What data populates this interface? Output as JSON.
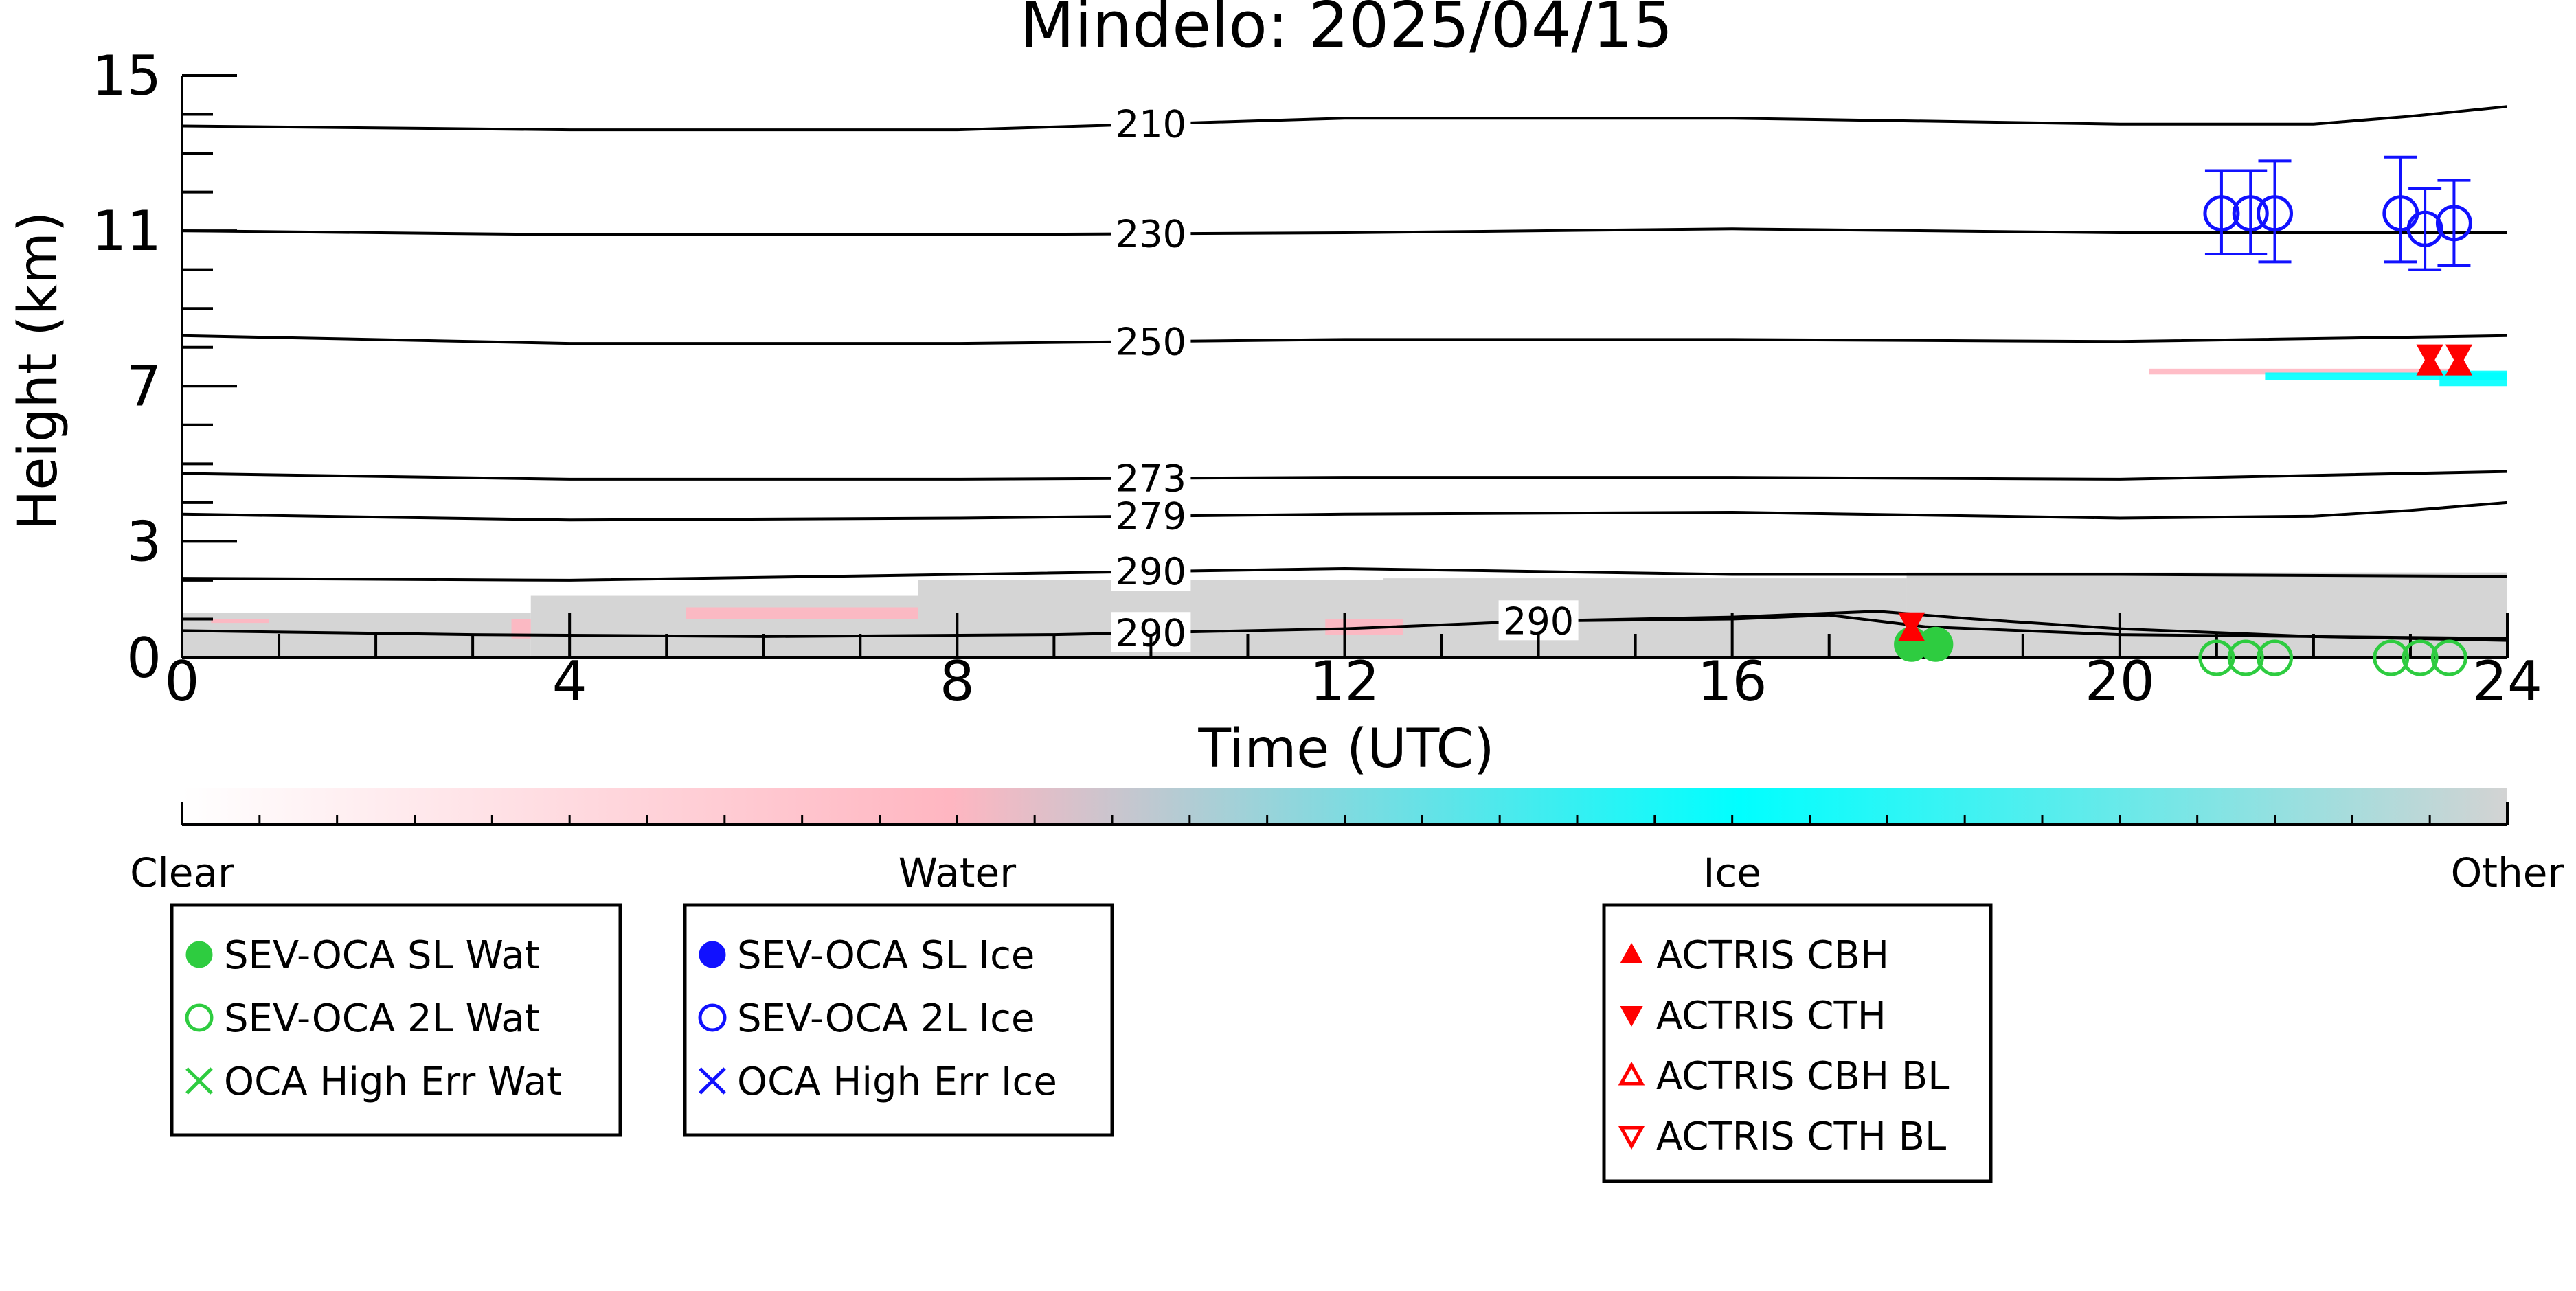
{
  "chart_data": {
    "type": "scatter",
    "title": "Mindelo: 2025/04/15",
    "xlabel": "Time (UTC)",
    "ylabel": "Height (km)",
    "xlim": [
      0,
      24
    ],
    "ylim": [
      0,
      15
    ],
    "x_ticks": [
      0,
      4,
      8,
      12,
      16,
      20,
      24
    ],
    "y_ticks": [
      0,
      3,
      7,
      11,
      15
    ],
    "temperature_contours": [
      {
        "label": "210",
        "label_x": 10.0,
        "x": [
          0,
          4,
          8,
          12,
          16,
          20,
          22,
          23,
          24
        ],
        "y": [
          13.7,
          13.6,
          13.6,
          13.9,
          13.9,
          13.75,
          13.75,
          13.95,
          14.2
        ]
      },
      {
        "label": "230",
        "label_x": 10.0,
        "x": [
          0,
          4,
          8,
          12,
          16,
          20,
          24
        ],
        "y": [
          11.0,
          10.9,
          10.9,
          10.95,
          11.05,
          10.95,
          10.95
        ]
      },
      {
        "label": "250",
        "label_x": 10.0,
        "x": [
          0,
          4,
          8,
          12,
          16,
          20,
          24
        ],
        "y": [
          8.3,
          8.1,
          8.1,
          8.2,
          8.2,
          8.15,
          8.3
        ]
      },
      {
        "label": "273",
        "label_x": 10.0,
        "x": [
          0,
          4,
          8,
          12,
          16,
          20,
          24
        ],
        "y": [
          4.75,
          4.6,
          4.6,
          4.65,
          4.65,
          4.6,
          4.8
        ]
      },
      {
        "label": "279",
        "label_x": 10.0,
        "x": [
          0,
          4,
          8,
          12,
          16,
          20,
          22,
          23,
          24
        ],
        "y": [
          3.7,
          3.55,
          3.6,
          3.7,
          3.75,
          3.6,
          3.65,
          3.8,
          4.0
        ]
      },
      {
        "label": "290",
        "label_x": 10.0,
        "x": [
          0,
          4,
          8,
          12,
          16,
          20,
          24
        ],
        "y": [
          2.05,
          2.0,
          2.15,
          2.3,
          2.15,
          2.15,
          2.1
        ]
      },
      {
        "label": "290",
        "label_x": 10.0,
        "x": [
          0,
          3,
          6,
          9,
          12,
          14,
          16,
          17,
          18,
          20,
          24
        ],
        "y": [
          0.7,
          0.6,
          0.55,
          0.6,
          0.75,
          0.95,
          1.0,
          1.1,
          0.8,
          0.6,
          0.5
        ]
      },
      {
        "label": "290",
        "label_x": 14.0,
        "x": [
          14,
          16,
          17.5,
          18.5,
          20,
          22,
          24
        ],
        "y": [
          0.95,
          1.05,
          1.2,
          1.0,
          0.75,
          0.55,
          0.45
        ]
      }
    ],
    "cloud_mask_bands": [
      {
        "category": "Other",
        "x_start": 0.0,
        "x_end": 3.6,
        "y_bottom": 0.0,
        "y_top": 1.15
      },
      {
        "category": "Other",
        "x_start": 3.6,
        "x_end": 7.6,
        "y_bottom": 0.0,
        "y_top": 1.6
      },
      {
        "category": "Other",
        "x_start": 7.6,
        "x_end": 12.4,
        "y_bottom": 0.0,
        "y_top": 2.0
      },
      {
        "category": "Other",
        "x_start": 12.4,
        "x_end": 17.8,
        "y_bottom": 0.0,
        "y_top": 2.05
      },
      {
        "category": "Other",
        "x_start": 17.8,
        "x_end": 24.0,
        "y_bottom": 0.0,
        "y_top": 2.2
      },
      {
        "category": "Water",
        "x_start": 0.3,
        "x_end": 0.9,
        "y_bottom": 0.9,
        "y_top": 1.0
      },
      {
        "category": "Water",
        "x_start": 3.4,
        "x_end": 3.6,
        "y_bottom": 0.5,
        "y_top": 1.0
      },
      {
        "category": "Water",
        "x_start": 5.2,
        "x_end": 7.6,
        "y_bottom": 1.0,
        "y_top": 1.3
      },
      {
        "category": "Water",
        "x_start": 11.8,
        "x_end": 12.6,
        "y_bottom": 0.6,
        "y_top": 1.0
      },
      {
        "category": "Water",
        "x_start": 20.3,
        "x_end": 23.6,
        "y_bottom": 7.3,
        "y_top": 7.45
      },
      {
        "category": "Ice",
        "x_start": 21.5,
        "x_end": 24.0,
        "y_bottom": 7.15,
        "y_top": 7.35
      },
      {
        "category": "Ice",
        "x_start": 23.3,
        "x_end": 24.0,
        "y_bottom": 7.0,
        "y_top": 7.4
      }
    ],
    "series": [
      {
        "name": "SEV-OCA SL Wat",
        "marker": "filled-circle",
        "color": "#2ecc40",
        "x": [
          17.85,
          18.1
        ],
        "y": [
          0.35,
          0.35
        ]
      },
      {
        "name": "SEV-OCA 2L Wat",
        "marker": "open-circle",
        "color": "#2ecc40",
        "x": [
          21.0,
          21.3,
          21.6,
          22.8,
          23.1,
          23.4
        ],
        "y": [
          0.0,
          0.0,
          0.0,
          0.0,
          0.0,
          0.0
        ]
      },
      {
        "name": "OCA High Err Wat",
        "marker": "x",
        "color": "#2ecc40",
        "x": [],
        "y": []
      },
      {
        "name": "SEV-OCA SL Ice",
        "marker": "filled-circle",
        "color": "#1111ff",
        "x": [],
        "y": []
      },
      {
        "name": "SEV-OCA 2L Ice",
        "marker": "open-circle",
        "color": "#1111ff",
        "x": [
          21.05,
          21.35,
          21.6,
          22.9,
          23.15,
          23.45
        ],
        "y": [
          11.45,
          11.45,
          11.45,
          11.45,
          11.05,
          11.2
        ],
        "err_low": [
          10.4,
          10.4,
          10.2,
          10.2,
          10.0,
          10.1
        ],
        "err_high": [
          12.55,
          12.55,
          12.8,
          12.9,
          12.1,
          12.3
        ]
      },
      {
        "name": "OCA High Err Ice",
        "marker": "x",
        "color": "#1111ff",
        "x": [],
        "y": []
      },
      {
        "name": "ACTRIS CBH",
        "marker": "filled-triangle-up",
        "color": "#ff0000",
        "x": [
          17.85,
          23.2,
          23.5
        ],
        "y": [
          0.7,
          7.55,
          7.55
        ]
      },
      {
        "name": "ACTRIS CTH",
        "marker": "filled-triangle-down",
        "color": "#ff0000",
        "x": [
          17.85,
          23.2,
          23.5
        ],
        "y": [
          0.9,
          7.8,
          7.8
        ]
      },
      {
        "name": "ACTRIS CBH BL",
        "marker": "open-triangle-up",
        "color": "#ff0000",
        "x": [],
        "y": []
      },
      {
        "name": "ACTRIS CTH BL",
        "marker": "open-triangle-down",
        "color": "#ff0000",
        "x": [],
        "y": []
      }
    ],
    "colorbar": {
      "labels": [
        "Clear",
        "Water",
        "Ice",
        "Other"
      ],
      "stops": [
        {
          "pos": 0.0,
          "color": "#ffffff"
        },
        {
          "pos": 0.33,
          "color": "#ffb6c1"
        },
        {
          "pos": 0.67,
          "color": "#00ffff"
        },
        {
          "pos": 1.0,
          "color": "#d3d3d3"
        }
      ]
    },
    "legend_boxes": [
      {
        "entries": [
          0,
          1,
          2
        ]
      },
      {
        "entries": [
          3,
          4,
          5
        ]
      },
      {
        "entries": [
          6,
          7,
          8,
          9
        ]
      }
    ],
    "grid": false
  }
}
